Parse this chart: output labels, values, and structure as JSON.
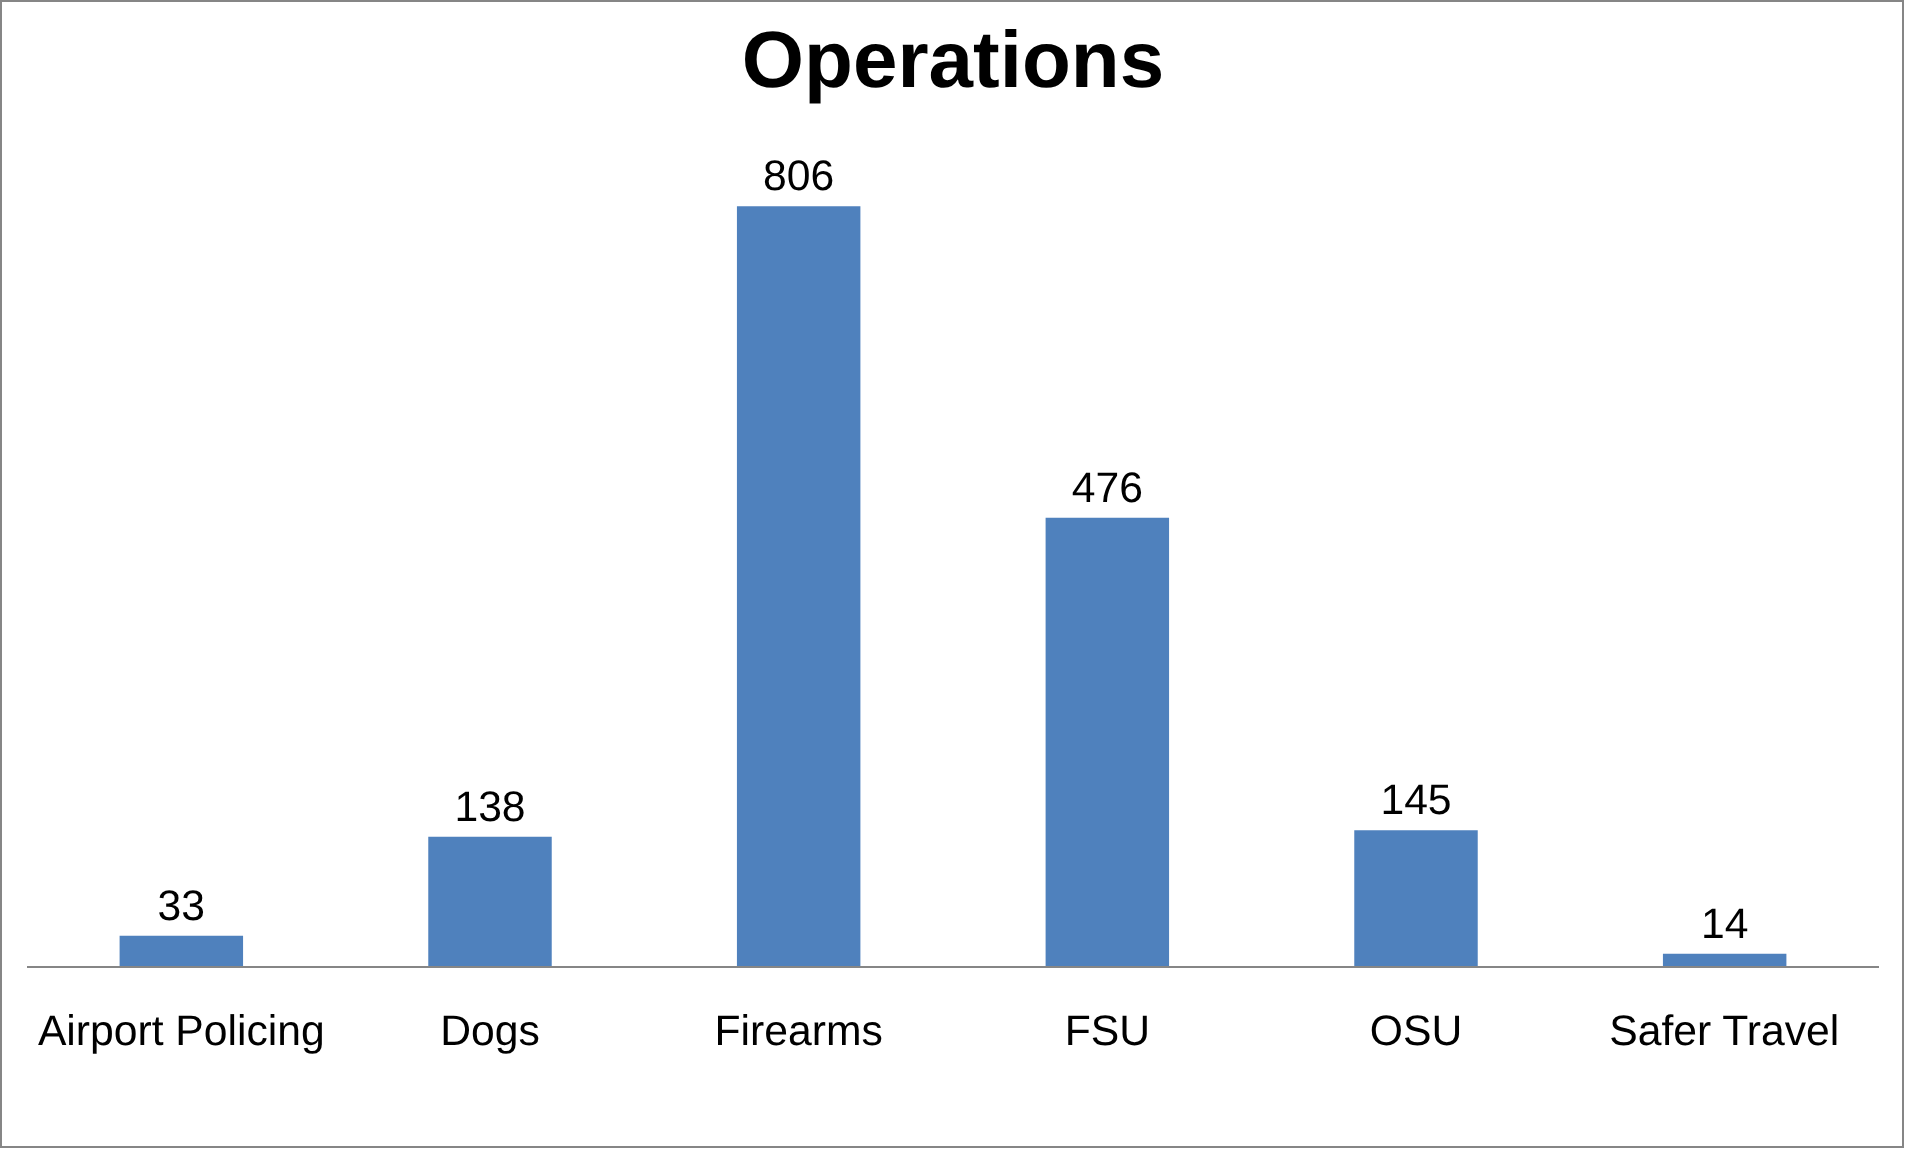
{
  "chart_data": {
    "type": "bar",
    "title": "Operations",
    "categories": [
      "Airport Policing",
      "Dogs",
      "Firearms",
      "FSU",
      "OSU",
      "Safer Travel"
    ],
    "values": [
      33,
      138,
      806,
      476,
      145,
      14
    ],
    "color": "#4f81bd",
    "data_labels": true,
    "grid": false
  }
}
